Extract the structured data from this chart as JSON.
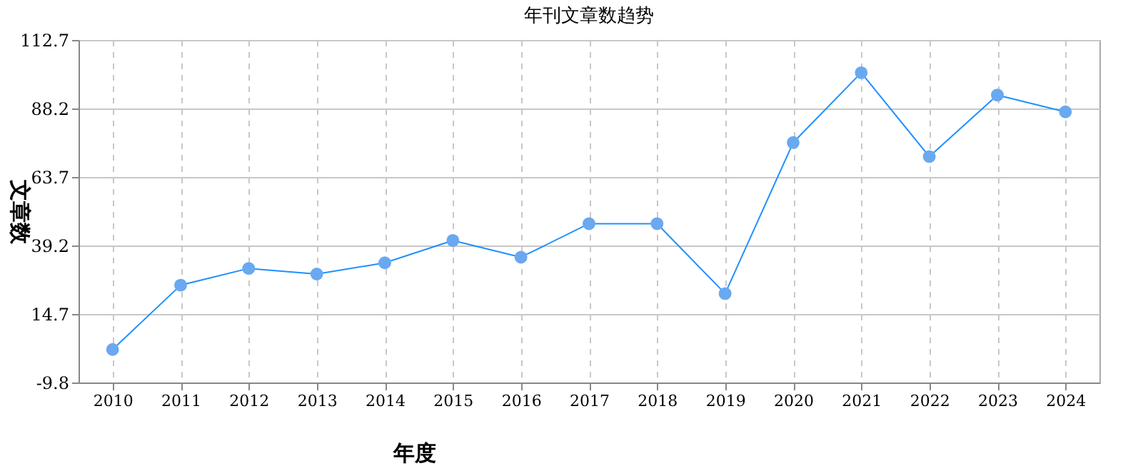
{
  "chart_data": {
    "type": "line",
    "title": "年刊文章数趋势",
    "xlabel": "年度",
    "ylabel": "文章数",
    "categories": [
      "2010",
      "2011",
      "2012",
      "2013",
      "2014",
      "2015",
      "2016",
      "2017",
      "2018",
      "2019",
      "2020",
      "2021",
      "2022",
      "2023",
      "2024"
    ],
    "series": [
      {
        "color": "#1e90ff",
        "values": [
          2,
          25,
          31,
          29,
          33,
          41,
          35,
          47,
          47,
          22,
          76,
          101,
          71,
          93,
          87
        ]
      }
    ],
    "ylim": [
      -9.8,
      112.7
    ],
    "yticks": [
      -9.8,
      14.7,
      39.2,
      63.7,
      88.2,
      112.7
    ],
    "grid": true,
    "marker": "circle",
    "line_style": "solid"
  }
}
